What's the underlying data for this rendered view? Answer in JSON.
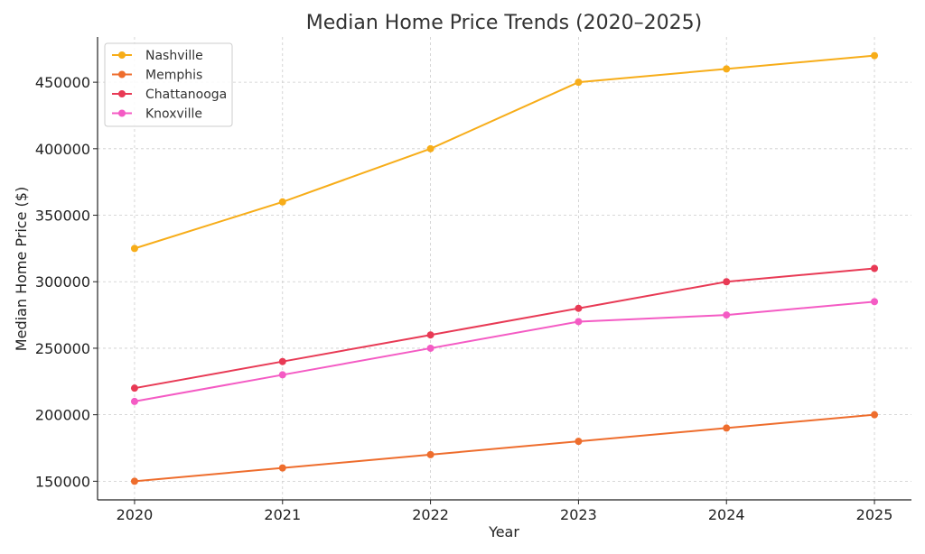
{
  "chart_data": {
    "type": "line",
    "title": "Median Home Price Trends (2020–2025)",
    "xlabel": "Year",
    "ylabel": "Median Home Price ($)",
    "x": [
      2020,
      2021,
      2022,
      2023,
      2024,
      2025
    ],
    "xlim": [
      2019.75,
      2025.25
    ],
    "ylim": [
      136000,
      484000
    ],
    "yticks": [
      150000,
      200000,
      250000,
      300000,
      350000,
      400000,
      450000
    ],
    "grid": true,
    "legend_position": "top-left",
    "series": [
      {
        "name": "Nashville",
        "color": "#f7ad19",
        "values": [
          325000,
          360000,
          400000,
          450000,
          460000,
          470000
        ]
      },
      {
        "name": "Memphis",
        "color": "#ee6d2d",
        "values": [
          150000,
          160000,
          170000,
          180000,
          190000,
          200000
        ]
      },
      {
        "name": "Chattanooga",
        "color": "#e83a55",
        "values": [
          220000,
          240000,
          260000,
          280000,
          300000,
          310000
        ]
      },
      {
        "name": "Knoxville",
        "color": "#f45bc4",
        "values": [
          210000,
          230000,
          250000,
          270000,
          275000,
          285000
        ]
      }
    ]
  }
}
